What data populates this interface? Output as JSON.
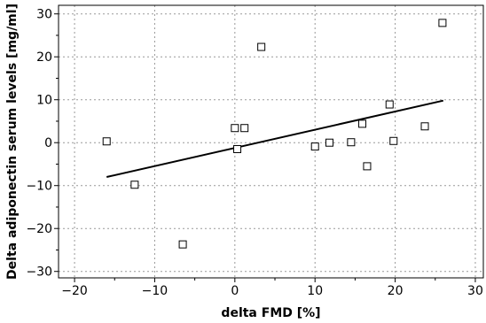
{
  "chart_data": {
    "type": "scatter",
    "title": "",
    "xlabel": "delta FMD [%]",
    "ylabel": "Delta adiponectin serum levels [mg/ml]",
    "xlim": [
      -22,
      31
    ],
    "ylim": [
      -31.5,
      32
    ],
    "xticks": [
      -20,
      -10,
      0,
      10,
      20,
      30
    ],
    "yticks": [
      -30,
      -20,
      -10,
      0,
      10,
      20,
      30
    ],
    "grid": true,
    "grid_style": "dotted",
    "legend": "none",
    "marker": "open-square",
    "colors": {
      "marker": "#000000",
      "trendline": "#000000",
      "grid": "#999999",
      "frame": "#000000"
    },
    "series": [
      {
        "points": [
          {
            "x": -16.0,
            "y": 0.3
          },
          {
            "x": -12.5,
            "y": -9.8
          },
          {
            "x": -6.5,
            "y": -23.7
          },
          {
            "x": 0.0,
            "y": 3.4
          },
          {
            "x": 0.3,
            "y": -1.5
          },
          {
            "x": 1.2,
            "y": 3.4
          },
          {
            "x": 3.3,
            "y": 22.3
          },
          {
            "x": 10.0,
            "y": -0.9
          },
          {
            "x": 11.8,
            "y": 0.0
          },
          {
            "x": 14.5,
            "y": 0.1
          },
          {
            "x": 15.9,
            "y": 4.4
          },
          {
            "x": 16.5,
            "y": -5.5
          },
          {
            "x": 19.3,
            "y": 8.9
          },
          {
            "x": 19.8,
            "y": 0.4
          },
          {
            "x": 23.7,
            "y": 3.8
          },
          {
            "x": 25.9,
            "y": 27.9
          }
        ]
      }
    ],
    "trendline": {
      "x": [
        -16,
        26
      ],
      "y": [
        -8,
        9.8
      ]
    }
  }
}
